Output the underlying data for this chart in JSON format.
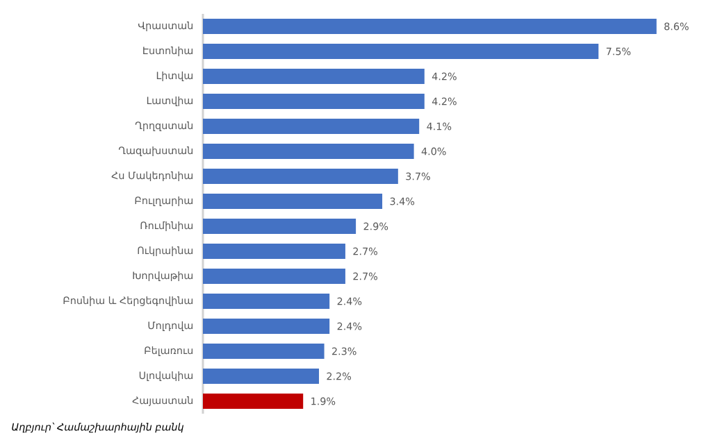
{
  "chart_data": {
    "type": "bar",
    "orientation": "horizontal",
    "categories": [
      "Վրաստան",
      "Էստոնիա",
      "Լիտվա",
      "Լատվիա",
      "Ղրղզստան",
      "Ղազախստան",
      "Հս Մակեդոնիա",
      "Բուլղարիա",
      "Ռումինիա",
      "Ուկրաինա",
      "Խորվաթիա",
      "Բոսնիա և Հերցեգովինա",
      "Մոլդովա",
      "Բելառուս",
      "Սլովակիա",
      "Հայաստան"
    ],
    "values": [
      8.6,
      7.5,
      4.2,
      4.2,
      4.1,
      4.0,
      3.7,
      3.4,
      2.9,
      2.7,
      2.7,
      2.4,
      2.4,
      2.3,
      2.2,
      1.9
    ],
    "colors": [
      "#4472c4",
      "#4472c4",
      "#4472c4",
      "#4472c4",
      "#4472c4",
      "#4472c4",
      "#4472c4",
      "#4472c4",
      "#4472c4",
      "#4472c4",
      "#4472c4",
      "#4472c4",
      "#4472c4",
      "#4472c4",
      "#4472c4",
      "#c00000"
    ],
    "value_labels": [
      "8.6%",
      "7.5%",
      "4.2%",
      "4.2%",
      "4.1%",
      "4.0%",
      "3.7%",
      "3.4%",
      "2.9%",
      "2.7%",
      "2.7%",
      "2.4%",
      "2.4%",
      "2.3%",
      "2.2%",
      "1.9%"
    ],
    "annotations": [
      "Աղբյուր՝ Համաշխարհային բանկ"
    ]
  }
}
